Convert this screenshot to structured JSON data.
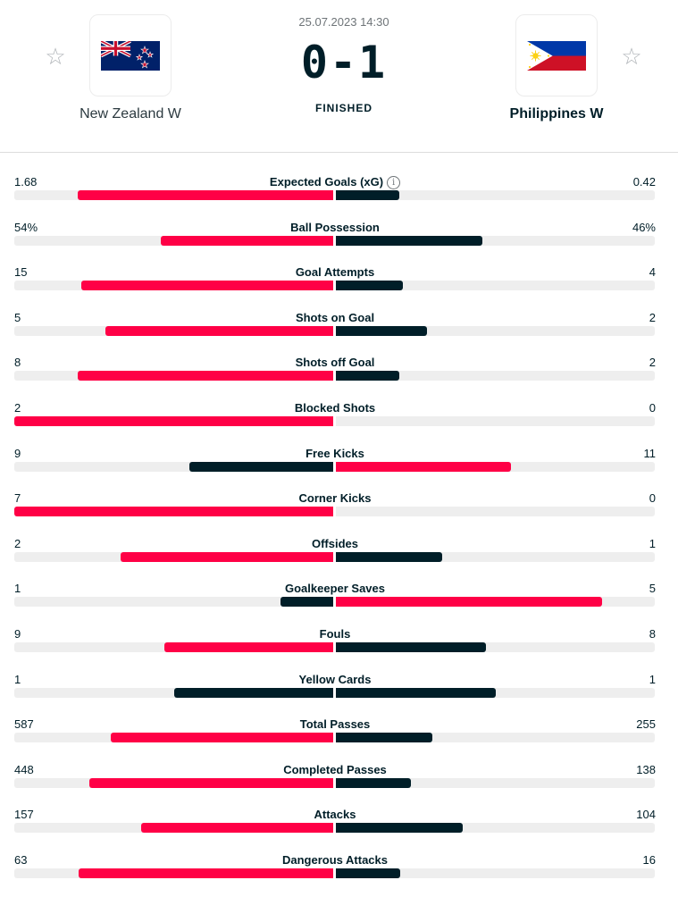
{
  "match": {
    "date": "25.07.2023 14:30",
    "score_home": "0",
    "score_sep": "-",
    "score_away": "1",
    "status": "FINISHED",
    "home_team": "New Zealand W",
    "away_team": "Philippines W"
  },
  "colors": {
    "winner_bar": "#ff0046",
    "loser_bar": "#001e28",
    "track": "#eeeeee"
  },
  "icons": {
    "favorite": "star-outline-icon",
    "info": "info-circle-icon"
  },
  "stats": [
    {
      "label": "Expected Goals (xG)",
      "home": "1.68",
      "away": "0.42",
      "home_num": 1.68,
      "away_num": 0.42,
      "info": true
    },
    {
      "label": "Ball Possession",
      "home": "54%",
      "away": "46%",
      "home_num": 54,
      "away_num": 46
    },
    {
      "label": "Goal Attempts",
      "home": "15",
      "away": "4",
      "home_num": 15,
      "away_num": 4
    },
    {
      "label": "Shots on Goal",
      "home": "5",
      "away": "2",
      "home_num": 5,
      "away_num": 2
    },
    {
      "label": "Shots off Goal",
      "home": "8",
      "away": "2",
      "home_num": 8,
      "away_num": 2
    },
    {
      "label": "Blocked Shots",
      "home": "2",
      "away": "0",
      "home_num": 2,
      "away_num": 0
    },
    {
      "label": "Free Kicks",
      "home": "9",
      "away": "11",
      "home_num": 9,
      "away_num": 11
    },
    {
      "label": "Corner Kicks",
      "home": "7",
      "away": "0",
      "home_num": 7,
      "away_num": 0
    },
    {
      "label": "Offsides",
      "home": "2",
      "away": "1",
      "home_num": 2,
      "away_num": 1
    },
    {
      "label": "Goalkeeper Saves",
      "home": "1",
      "away": "5",
      "home_num": 1,
      "away_num": 5
    },
    {
      "label": "Fouls",
      "home": "9",
      "away": "8",
      "home_num": 9,
      "away_num": 8
    },
    {
      "label": "Yellow Cards",
      "home": "1",
      "away": "1",
      "home_num": 1,
      "away_num": 1
    },
    {
      "label": "Total Passes",
      "home": "587",
      "away": "255",
      "home_num": 587,
      "away_num": 255
    },
    {
      "label": "Completed Passes",
      "home": "448",
      "away": "138",
      "home_num": 448,
      "away_num": 138
    },
    {
      "label": "Attacks",
      "home": "157",
      "away": "104",
      "home_num": 157,
      "away_num": 104
    },
    {
      "label": "Dangerous Attacks",
      "home": "63",
      "away": "16",
      "home_num": 63,
      "away_num": 16
    }
  ]
}
